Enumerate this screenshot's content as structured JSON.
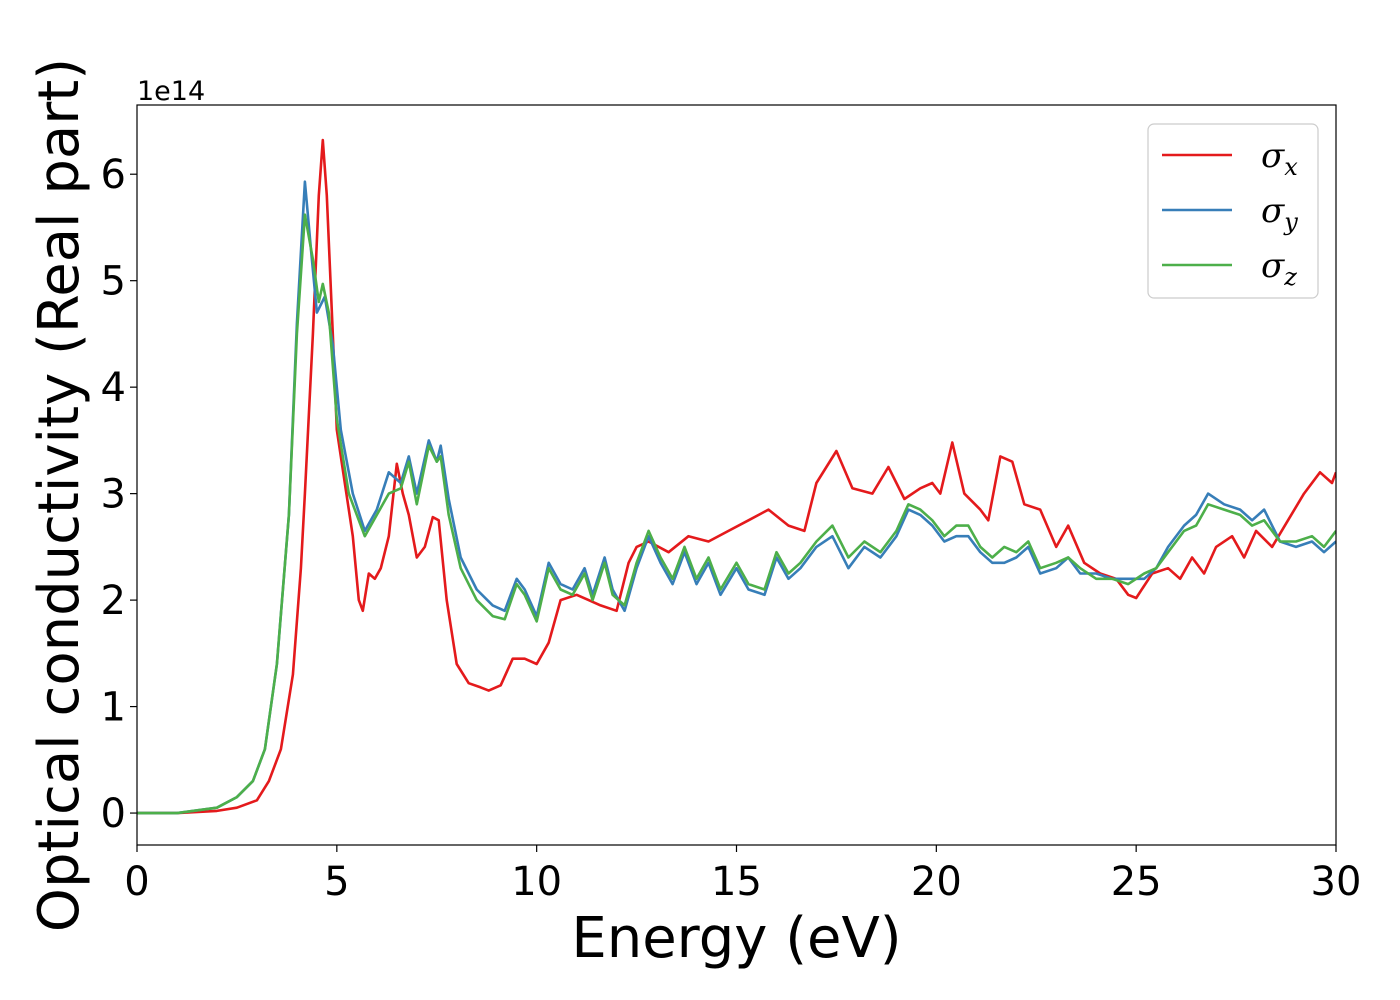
{
  "chart_data": {
    "type": "line",
    "xlabel": "Energy (eV)",
    "ylabel": "Optical conductivity (Real part)",
    "y_scale_label": "1e14",
    "xlim": [
      0,
      30
    ],
    "ylim": [
      -0.3,
      6.65
    ],
    "x_ticks": [
      0,
      5,
      10,
      15,
      20,
      25,
      30
    ],
    "y_ticks": [
      0,
      1,
      2,
      3,
      4,
      5,
      6
    ],
    "grid": false,
    "legend_position": "top-right",
    "series": [
      {
        "name": "σ",
        "subscript": "x",
        "color": "#e41a1c",
        "points": [
          [
            0,
            0
          ],
          [
            1,
            0
          ],
          [
            2,
            0.02
          ],
          [
            2.5,
            0.05
          ],
          [
            3,
            0.12
          ],
          [
            3.3,
            0.3
          ],
          [
            3.6,
            0.6
          ],
          [
            3.9,
            1.3
          ],
          [
            4.1,
            2.3
          ],
          [
            4.2,
            3.0
          ],
          [
            4.4,
            4.5
          ],
          [
            4.55,
            5.8
          ],
          [
            4.65,
            6.32
          ],
          [
            4.75,
            5.8
          ],
          [
            4.9,
            4.5
          ],
          [
            5.0,
            3.6
          ],
          [
            5.2,
            3.1
          ],
          [
            5.4,
            2.6
          ],
          [
            5.55,
            2.0
          ],
          [
            5.65,
            1.9
          ],
          [
            5.8,
            2.25
          ],
          [
            5.95,
            2.2
          ],
          [
            6.1,
            2.3
          ],
          [
            6.3,
            2.6
          ],
          [
            6.5,
            3.28
          ],
          [
            6.65,
            3.0
          ],
          [
            6.8,
            2.8
          ],
          [
            7.0,
            2.4
          ],
          [
            7.2,
            2.5
          ],
          [
            7.4,
            2.78
          ],
          [
            7.55,
            2.75
          ],
          [
            7.75,
            2.0
          ],
          [
            8.0,
            1.4
          ],
          [
            8.3,
            1.22
          ],
          [
            8.6,
            1.18
          ],
          [
            8.8,
            1.15
          ],
          [
            9.1,
            1.2
          ],
          [
            9.4,
            1.45
          ],
          [
            9.7,
            1.45
          ],
          [
            10.0,
            1.4
          ],
          [
            10.3,
            1.6
          ],
          [
            10.6,
            2.0
          ],
          [
            11.0,
            2.05
          ],
          [
            11.3,
            2.0
          ],
          [
            11.6,
            1.95
          ],
          [
            12.0,
            1.9
          ],
          [
            12.3,
            2.35
          ],
          [
            12.5,
            2.5
          ],
          [
            12.8,
            2.55
          ],
          [
            13.3,
            2.45
          ],
          [
            13.8,
            2.6
          ],
          [
            14.3,
            2.55
          ],
          [
            14.8,
            2.65
          ],
          [
            15.3,
            2.75
          ],
          [
            15.8,
            2.85
          ],
          [
            16.3,
            2.7
          ],
          [
            16.7,
            2.65
          ],
          [
            17.0,
            3.1
          ],
          [
            17.5,
            3.4
          ],
          [
            17.9,
            3.05
          ],
          [
            18.4,
            3.0
          ],
          [
            18.8,
            3.25
          ],
          [
            19.2,
            2.95
          ],
          [
            19.6,
            3.05
          ],
          [
            19.9,
            3.1
          ],
          [
            20.1,
            3.0
          ],
          [
            20.4,
            3.48
          ],
          [
            20.7,
            3.0
          ],
          [
            21.1,
            2.85
          ],
          [
            21.3,
            2.75
          ],
          [
            21.6,
            3.35
          ],
          [
            21.9,
            3.3
          ],
          [
            22.2,
            2.9
          ],
          [
            22.6,
            2.85
          ],
          [
            23.0,
            2.5
          ],
          [
            23.3,
            2.7
          ],
          [
            23.7,
            2.35
          ],
          [
            24.1,
            2.25
          ],
          [
            24.5,
            2.2
          ],
          [
            24.8,
            2.05
          ],
          [
            25.0,
            2.02
          ],
          [
            25.4,
            2.25
          ],
          [
            25.8,
            2.3
          ],
          [
            26.1,
            2.2
          ],
          [
            26.4,
            2.4
          ],
          [
            26.7,
            2.25
          ],
          [
            27.0,
            2.5
          ],
          [
            27.4,
            2.6
          ],
          [
            27.7,
            2.4
          ],
          [
            28.0,
            2.65
          ],
          [
            28.4,
            2.5
          ],
          [
            28.8,
            2.75
          ],
          [
            29.2,
            3.0
          ],
          [
            29.6,
            3.2
          ],
          [
            29.9,
            3.1
          ],
          [
            30,
            3.2
          ]
        ]
      },
      {
        "name": "σ",
        "subscript": "y",
        "color": "#377eb8",
        "points": [
          [
            0,
            0
          ],
          [
            1,
            0
          ],
          [
            2,
            0.05
          ],
          [
            2.5,
            0.15
          ],
          [
            2.9,
            0.3
          ],
          [
            3.2,
            0.6
          ],
          [
            3.5,
            1.4
          ],
          [
            3.8,
            2.8
          ],
          [
            4.0,
            4.6
          ],
          [
            4.2,
            5.93
          ],
          [
            4.35,
            5.3
          ],
          [
            4.5,
            4.7
          ],
          [
            4.7,
            4.85
          ],
          [
            4.9,
            4.4
          ],
          [
            5.1,
            3.6
          ],
          [
            5.4,
            3.0
          ],
          [
            5.7,
            2.65
          ],
          [
            6.0,
            2.85
          ],
          [
            6.3,
            3.2
          ],
          [
            6.6,
            3.1
          ],
          [
            6.8,
            3.35
          ],
          [
            7.0,
            3.0
          ],
          [
            7.3,
            3.5
          ],
          [
            7.5,
            3.3
          ],
          [
            7.6,
            3.45
          ],
          [
            7.8,
            2.95
          ],
          [
            8.1,
            2.4
          ],
          [
            8.5,
            2.1
          ],
          [
            8.9,
            1.95
          ],
          [
            9.2,
            1.9
          ],
          [
            9.5,
            2.2
          ],
          [
            9.7,
            2.1
          ],
          [
            10.0,
            1.85
          ],
          [
            10.3,
            2.35
          ],
          [
            10.6,
            2.15
          ],
          [
            10.9,
            2.1
          ],
          [
            11.2,
            2.3
          ],
          [
            11.4,
            2.05
          ],
          [
            11.7,
            2.4
          ],
          [
            11.9,
            2.1
          ],
          [
            12.2,
            1.9
          ],
          [
            12.5,
            2.3
          ],
          [
            12.8,
            2.6
          ],
          [
            13.1,
            2.35
          ],
          [
            13.4,
            2.15
          ],
          [
            13.7,
            2.45
          ],
          [
            14.0,
            2.15
          ],
          [
            14.3,
            2.35
          ],
          [
            14.6,
            2.05
          ],
          [
            15.0,
            2.3
          ],
          [
            15.3,
            2.1
          ],
          [
            15.7,
            2.05
          ],
          [
            16.0,
            2.4
          ],
          [
            16.3,
            2.2
          ],
          [
            16.6,
            2.3
          ],
          [
            17.0,
            2.5
          ],
          [
            17.4,
            2.6
          ],
          [
            17.8,
            2.3
          ],
          [
            18.2,
            2.5
          ],
          [
            18.6,
            2.4
          ],
          [
            19.0,
            2.6
          ],
          [
            19.3,
            2.85
          ],
          [
            19.6,
            2.8
          ],
          [
            19.9,
            2.7
          ],
          [
            20.2,
            2.55
          ],
          [
            20.5,
            2.6
          ],
          [
            20.8,
            2.6
          ],
          [
            21.1,
            2.45
          ],
          [
            21.4,
            2.35
          ],
          [
            21.7,
            2.35
          ],
          [
            22.0,
            2.4
          ],
          [
            22.3,
            2.5
          ],
          [
            22.6,
            2.25
          ],
          [
            23.0,
            2.3
          ],
          [
            23.3,
            2.4
          ],
          [
            23.6,
            2.25
          ],
          [
            24.0,
            2.25
          ],
          [
            24.4,
            2.2
          ],
          [
            24.8,
            2.2
          ],
          [
            25.2,
            2.2
          ],
          [
            25.5,
            2.3
          ],
          [
            25.8,
            2.5
          ],
          [
            26.2,
            2.7
          ],
          [
            26.5,
            2.8
          ],
          [
            26.8,
            3.0
          ],
          [
            27.2,
            2.9
          ],
          [
            27.6,
            2.85
          ],
          [
            27.9,
            2.75
          ],
          [
            28.2,
            2.85
          ],
          [
            28.6,
            2.55
          ],
          [
            29.0,
            2.5
          ],
          [
            29.4,
            2.55
          ],
          [
            29.7,
            2.45
          ],
          [
            30,
            2.55
          ]
        ]
      },
      {
        "name": "σ",
        "subscript": "z",
        "color": "#4daf4a",
        "points": [
          [
            0,
            0
          ],
          [
            1,
            0
          ],
          [
            2,
            0.05
          ],
          [
            2.5,
            0.15
          ],
          [
            2.9,
            0.3
          ],
          [
            3.2,
            0.6
          ],
          [
            3.5,
            1.4
          ],
          [
            3.8,
            2.8
          ],
          [
            4.0,
            4.5
          ],
          [
            4.2,
            5.62
          ],
          [
            4.4,
            5.2
          ],
          [
            4.55,
            4.8
          ],
          [
            4.65,
            4.97
          ],
          [
            4.8,
            4.7
          ],
          [
            5.0,
            3.7
          ],
          [
            5.3,
            3.0
          ],
          [
            5.7,
            2.6
          ],
          [
            6.0,
            2.8
          ],
          [
            6.3,
            3.0
          ],
          [
            6.6,
            3.05
          ],
          [
            6.8,
            3.3
          ],
          [
            7.0,
            2.9
          ],
          [
            7.3,
            3.45
          ],
          [
            7.5,
            3.3
          ],
          [
            7.6,
            3.35
          ],
          [
            7.8,
            2.8
          ],
          [
            8.1,
            2.3
          ],
          [
            8.5,
            2.0
          ],
          [
            8.9,
            1.85
          ],
          [
            9.2,
            1.82
          ],
          [
            9.5,
            2.15
          ],
          [
            9.7,
            2.05
          ],
          [
            10.0,
            1.8
          ],
          [
            10.3,
            2.3
          ],
          [
            10.6,
            2.1
          ],
          [
            10.9,
            2.05
          ],
          [
            11.2,
            2.25
          ],
          [
            11.4,
            2.0
          ],
          [
            11.7,
            2.35
          ],
          [
            11.9,
            2.05
          ],
          [
            12.2,
            1.95
          ],
          [
            12.5,
            2.35
          ],
          [
            12.8,
            2.65
          ],
          [
            13.1,
            2.4
          ],
          [
            13.4,
            2.2
          ],
          [
            13.7,
            2.5
          ],
          [
            14.0,
            2.2
          ],
          [
            14.3,
            2.4
          ],
          [
            14.6,
            2.1
          ],
          [
            15.0,
            2.35
          ],
          [
            15.3,
            2.15
          ],
          [
            15.7,
            2.1
          ],
          [
            16.0,
            2.45
          ],
          [
            16.3,
            2.25
          ],
          [
            16.6,
            2.35
          ],
          [
            17.0,
            2.55
          ],
          [
            17.4,
            2.7
          ],
          [
            17.8,
            2.4
          ],
          [
            18.2,
            2.55
          ],
          [
            18.6,
            2.45
          ],
          [
            19.0,
            2.65
          ],
          [
            19.3,
            2.9
          ],
          [
            19.6,
            2.85
          ],
          [
            19.9,
            2.75
          ],
          [
            20.2,
            2.6
          ],
          [
            20.5,
            2.7
          ],
          [
            20.8,
            2.7
          ],
          [
            21.1,
            2.5
          ],
          [
            21.4,
            2.4
          ],
          [
            21.7,
            2.5
          ],
          [
            22.0,
            2.45
          ],
          [
            22.3,
            2.55
          ],
          [
            22.6,
            2.3
          ],
          [
            23.0,
            2.35
          ],
          [
            23.3,
            2.4
          ],
          [
            23.6,
            2.3
          ],
          [
            24.0,
            2.2
          ],
          [
            24.4,
            2.2
          ],
          [
            24.8,
            2.15
          ],
          [
            25.2,
            2.25
          ],
          [
            25.5,
            2.3
          ],
          [
            25.8,
            2.45
          ],
          [
            26.2,
            2.65
          ],
          [
            26.5,
            2.7
          ],
          [
            26.8,
            2.9
          ],
          [
            27.2,
            2.85
          ],
          [
            27.6,
            2.8
          ],
          [
            27.9,
            2.7
          ],
          [
            28.2,
            2.75
          ],
          [
            28.6,
            2.55
          ],
          [
            29.0,
            2.55
          ],
          [
            29.4,
            2.6
          ],
          [
            29.7,
            2.5
          ],
          [
            30,
            2.65
          ]
        ]
      }
    ]
  }
}
